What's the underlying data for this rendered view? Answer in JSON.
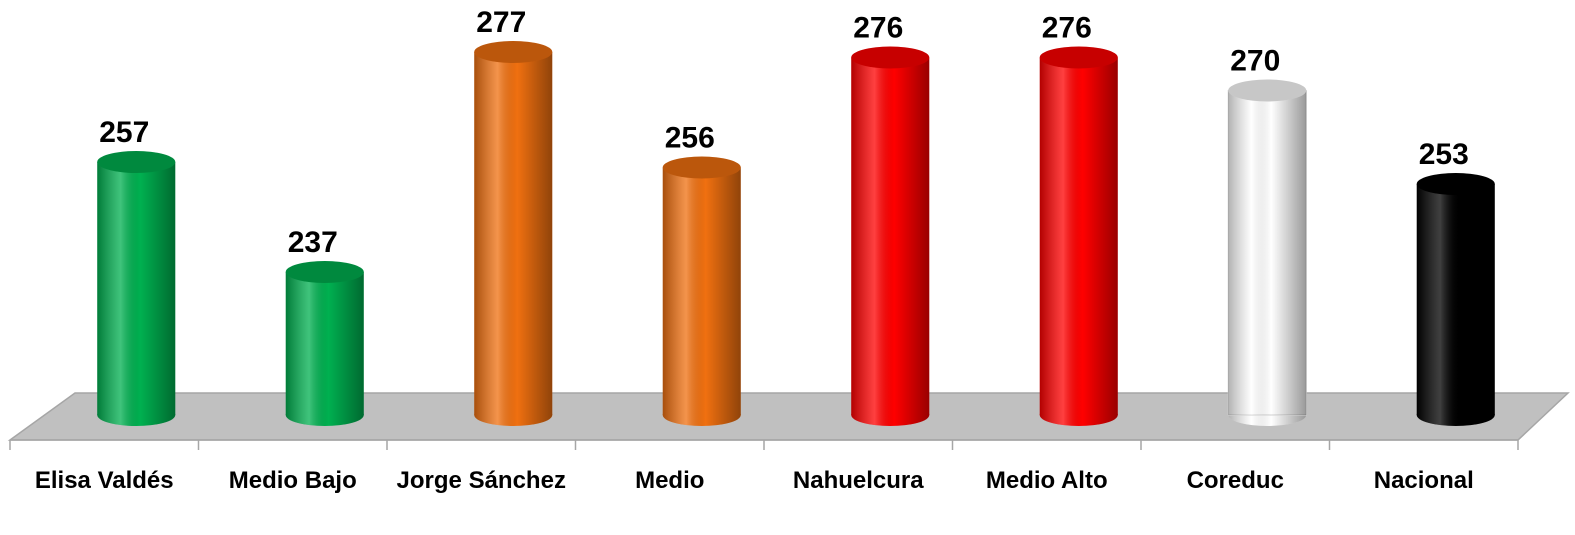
{
  "chart_data": {
    "type": "bar",
    "categories": [
      "Elisa Valdés",
      "Medio Bajo",
      "Jorge Sánchez",
      "Medio",
      "Nahuelcura",
      "Medio Alto",
      "Coreduc",
      "Nacional"
    ],
    "values": [
      257,
      237,
      277,
      256,
      276,
      276,
      270,
      253
    ],
    "colors": [
      "#00b050",
      "#00b050",
      "#f07010",
      "#f07010",
      "#ff0000",
      "#ff0000",
      "#ffffff",
      "#000000"
    ],
    "ylim": [
      211,
      280
    ]
  }
}
